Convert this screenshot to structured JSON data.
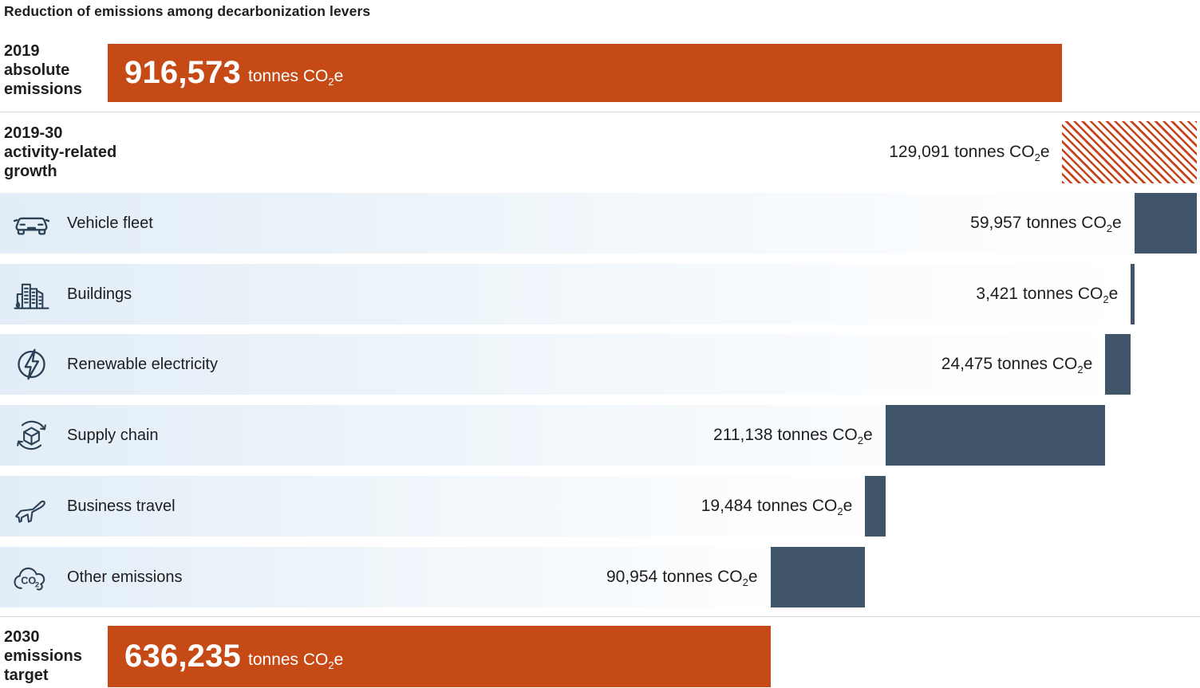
{
  "title": "Reduction of emissions among decarbonization levers",
  "unit": {
    "prefix": "tonnes CO",
    "sub": "2",
    "suffix": "e"
  },
  "chart_data": {
    "type": "waterfall",
    "title": "Reduction of emissions among decarbonization levers",
    "unit": "tonnes CO2e",
    "orientation": "horizontal, bars right-aligned, descending from 2019+growth total down to 2030 target",
    "start": {
      "label": "2019 absolute emissions",
      "label_lines": [
        "2019",
        "absolute",
        "emissions"
      ],
      "value": 916573,
      "value_text": "916,573"
    },
    "growth": {
      "label": "2019-30 activity-related growth",
      "label_lines": [
        "2019-30",
        "activity-related",
        "growth"
      ],
      "value": 129091,
      "value_text": "129,091"
    },
    "levers": [
      {
        "label": "Vehicle fleet",
        "icon": "car-icon",
        "value": 59957,
        "value_text": "59,957"
      },
      {
        "label": "Buildings",
        "icon": "buildings-icon",
        "value": 3421,
        "value_text": "3,421"
      },
      {
        "label": "Renewable electricity",
        "icon": "lightning-icon",
        "value": 24475,
        "value_text": "24,475"
      },
      {
        "label": "Supply chain",
        "icon": "supply-chain-icon",
        "value": 211138,
        "value_text": "211,138"
      },
      {
        "label": "Business travel",
        "icon": "airplane-icon",
        "value": 19484,
        "value_text": "19,484"
      },
      {
        "label": "Other emissions",
        "icon": "co2-cloud-icon",
        "value": 90954,
        "value_text": "90,954"
      }
    ],
    "end": {
      "label": "2030 emissions target",
      "label_lines": [
        "2030",
        "emissions",
        "target"
      ],
      "value": 636235,
      "value_text": "636,235"
    },
    "colors": {
      "start_end_bar": "#c54a16",
      "lever_bar": "#405569",
      "growth_hatch_stripe": "#c8421a",
      "row_band_left": "#e2edf7",
      "icon_stroke": "#2c4156",
      "text": "#1e1e1e",
      "divider": "#d9d9d9"
    }
  }
}
